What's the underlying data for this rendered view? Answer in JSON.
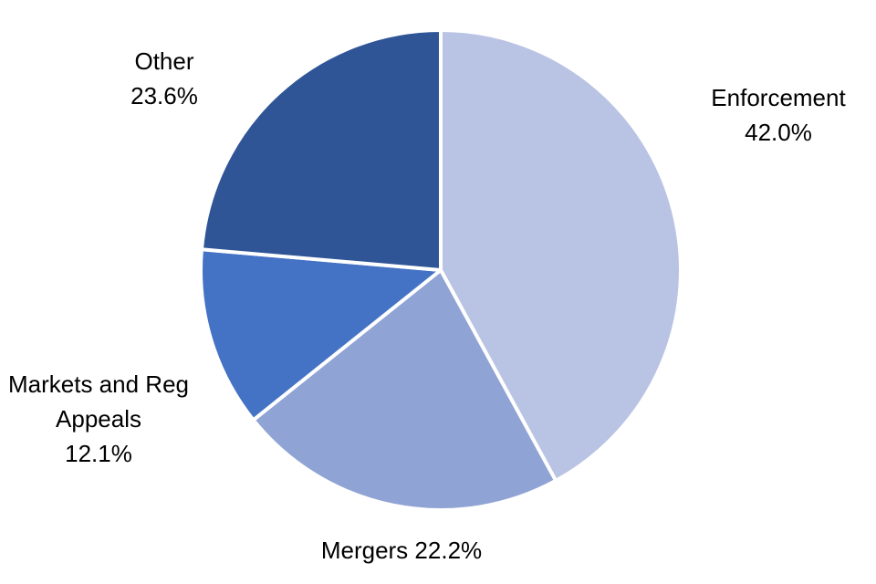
{
  "chart_data": {
    "type": "pie",
    "categories": [
      "Enforcement",
      "Mergers",
      "Markets and Reg Appeals",
      "Other"
    ],
    "values": [
      42.0,
      22.2,
      12.1,
      23.6
    ],
    "value_labels": [
      "42.0%",
      "22.2%",
      "12.1%",
      "23.6%"
    ],
    "colors": [
      "#b9c3e3",
      "#8fa3d4",
      "#4472c4",
      "#2f5597"
    ]
  }
}
